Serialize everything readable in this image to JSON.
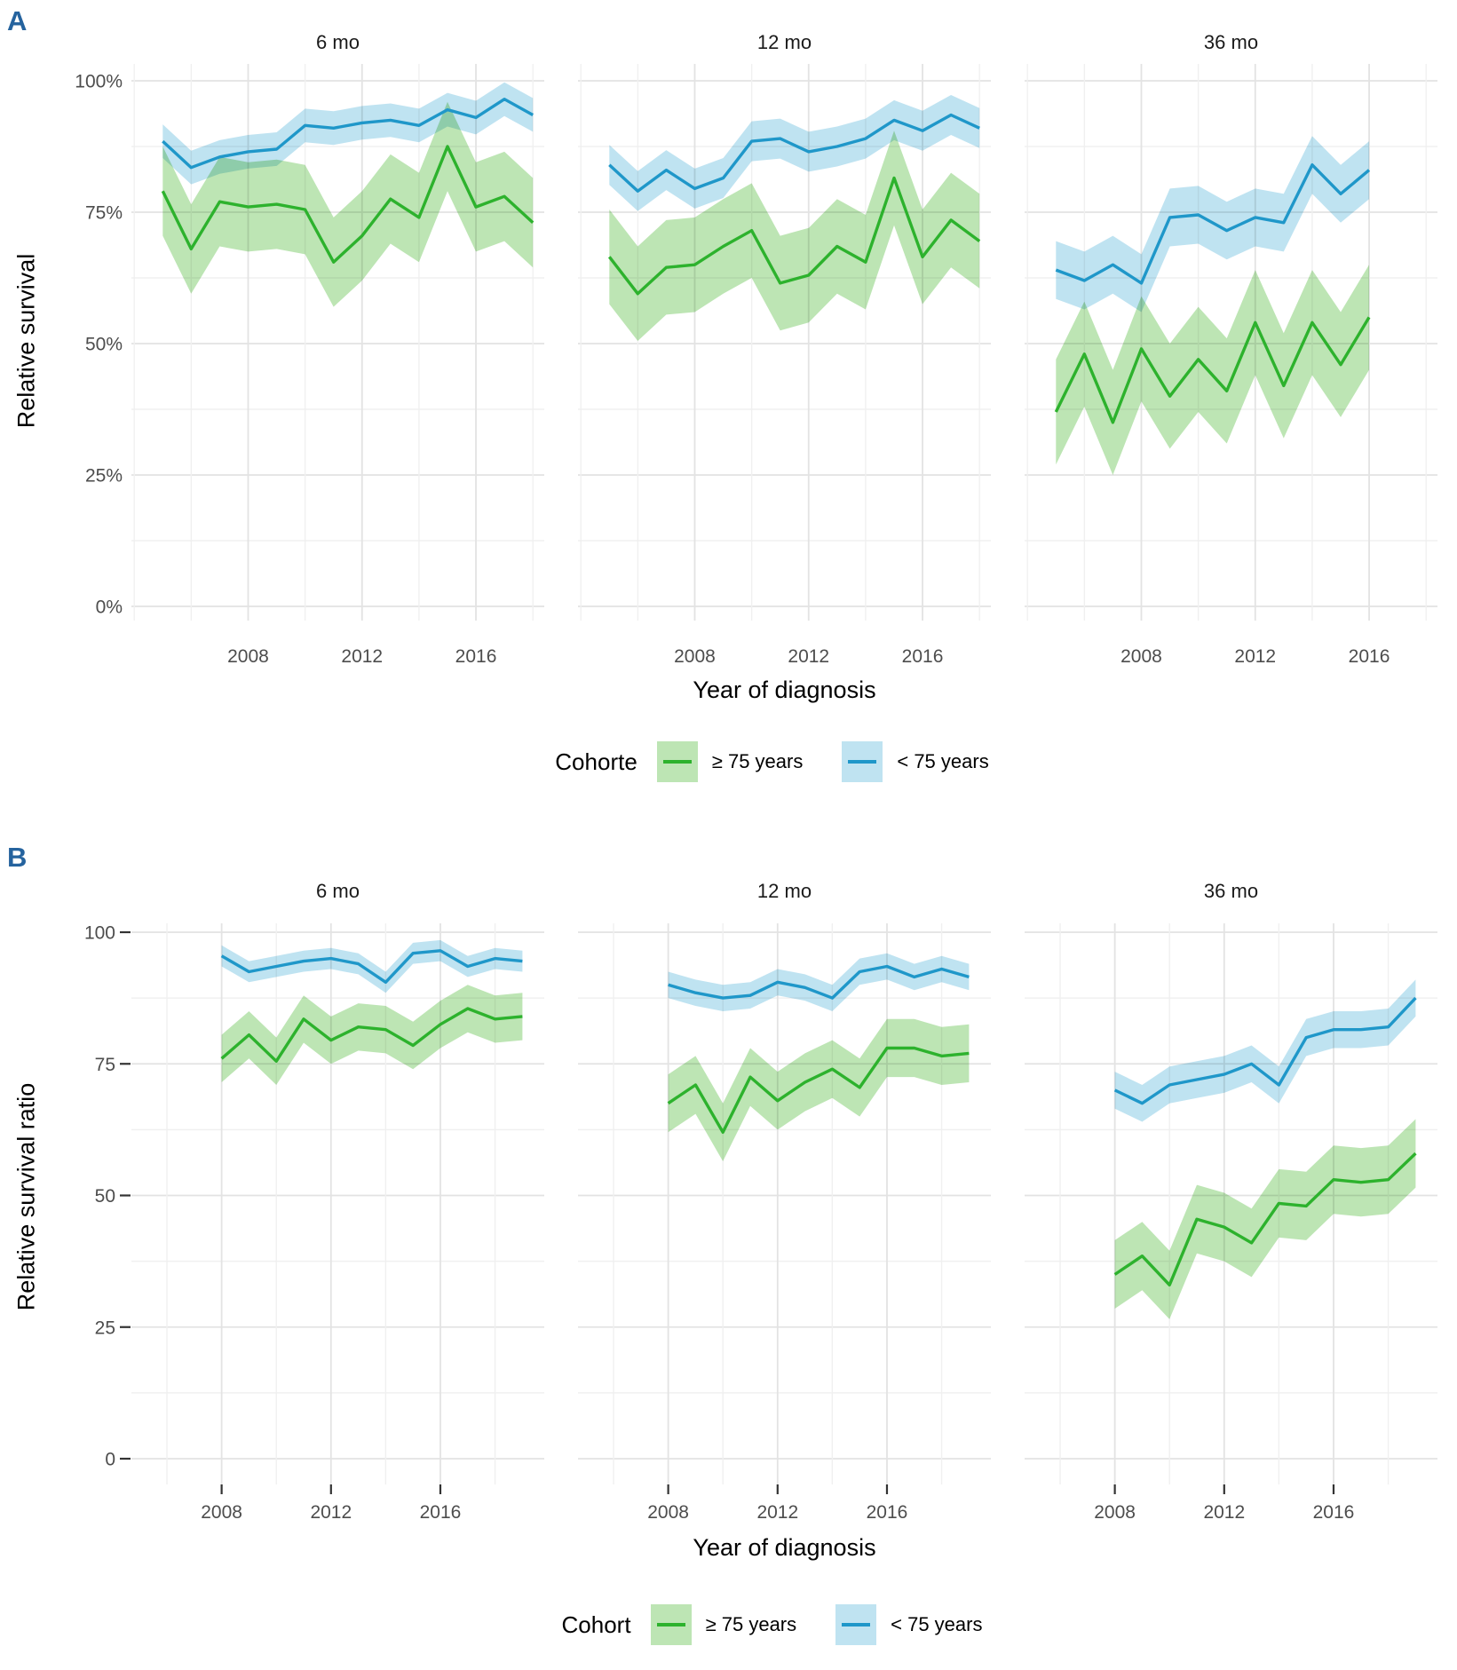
{
  "colors": {
    "ge75_line": "#2db22d",
    "ge75_band": "#bde5b4",
    "lt75_line": "#1f97c9",
    "lt75_band": "#bfe3f1",
    "panel_letter": "#25639e",
    "tick_text": "#4d4d4d",
    "grid_major": "#e3e3e3",
    "grid_minor": "#f0f0f0",
    "tick_mark": "#333333"
  },
  "chart_data": [
    {
      "type": "line",
      "label": "A",
      "y_title": "Relative survival",
      "x_title": "Year of diagnosis",
      "ylim": [
        0,
        100
      ],
      "y_ticks": [
        {
          "v": 100,
          "label": "100%"
        },
        {
          "v": 75,
          "label": "75%"
        },
        {
          "v": 50,
          "label": "50%"
        },
        {
          "v": 25,
          "label": "25%"
        },
        {
          "v": 0,
          "label": "0%"
        }
      ],
      "x_tick_years": [
        2008,
        2012,
        2016
      ],
      "legend": {
        "title": "Cohorte",
        "items": [
          {
            "key": "ge75",
            "label": "≥ 75 years"
          },
          {
            "key": "lt75",
            "label": "< 75 years"
          }
        ]
      },
      "facets": [
        {
          "title": "6 mo",
          "years": [
            2005,
            2006,
            2007,
            2008,
            2009,
            2010,
            2011,
            2012,
            2013,
            2014,
            2015,
            2016,
            2017,
            2018
          ],
          "series": [
            {
              "key": "ge75",
              "name": "≥ 75 years",
              "band": 8.5,
              "values": [
                79,
                68,
                77,
                76,
                76.5,
                75.5,
                65.5,
                70.5,
                77.5,
                74,
                87.5,
                76,
                78,
                73
              ]
            },
            {
              "key": "lt75",
              "name": "< 75 years",
              "band": 3.2,
              "values": [
                88.5,
                83.5,
                85.5,
                86.5,
                87,
                91.5,
                91,
                92,
                92.5,
                91.5,
                94.5,
                93,
                96.5,
                93.5
              ]
            }
          ]
        },
        {
          "title": "12 mo",
          "years": [
            2005,
            2006,
            2007,
            2008,
            2009,
            2010,
            2011,
            2012,
            2013,
            2014,
            2015,
            2016,
            2017,
            2018
          ],
          "series": [
            {
              "key": "ge75",
              "name": "≥ 75 years",
              "band": 9,
              "values": [
                66.5,
                59.5,
                64.5,
                65,
                68.5,
                71.5,
                61.5,
                63,
                68.5,
                65.5,
                81.5,
                66.5,
                73.5,
                69.5
              ]
            },
            {
              "key": "lt75",
              "name": "< 75 years",
              "band": 3.8,
              "values": [
                84,
                79,
                83,
                79.5,
                81.5,
                88.5,
                89,
                86.5,
                87.5,
                89,
                92.5,
                90.5,
                93.5,
                91
              ]
            }
          ]
        },
        {
          "title": "36 mo",
          "years": [
            2005,
            2006,
            2007,
            2008,
            2009,
            2010,
            2011,
            2012,
            2013,
            2014,
            2015,
            2016
          ],
          "series": [
            {
              "key": "ge75",
              "name": "≥ 75 years",
              "band": 10,
              "values": [
                37,
                48,
                35,
                49,
                40,
                47,
                41,
                54,
                42,
                54,
                46,
                55
              ]
            },
            {
              "key": "lt75",
              "name": "< 75 years",
              "band": 5.5,
              "values": [
                64,
                62,
                65,
                61.5,
                74,
                74.5,
                71.5,
                74,
                73,
                84,
                78.5,
                83
              ]
            }
          ]
        }
      ]
    },
    {
      "type": "line",
      "label": "B",
      "y_title": "Relative survival ratio",
      "x_title": "Year of diagnosis",
      "ylim": [
        0,
        100
      ],
      "y_ticks": [
        {
          "v": 100,
          "label": "100"
        },
        {
          "v": 75,
          "label": "75"
        },
        {
          "v": 50,
          "label": "50"
        },
        {
          "v": 25,
          "label": "25"
        },
        {
          "v": 0,
          "label": "0"
        }
      ],
      "x_tick_years": [
        2008,
        2012,
        2016
      ],
      "legend": {
        "title": "Cohort",
        "items": [
          {
            "key": "ge75",
            "label": "≥ 75 years"
          },
          {
            "key": "lt75",
            "label": "< 75 years"
          }
        ]
      },
      "facets": [
        {
          "title": "6 mo",
          "years": [
            2008,
            2009,
            2010,
            2011,
            2012,
            2013,
            2014,
            2015,
            2016,
            2017,
            2018,
            2019
          ],
          "series": [
            {
              "key": "ge75",
              "name": "≥ 75 years",
              "band": 4.5,
              "values": [
                76,
                80.5,
                75.5,
                83.5,
                79.5,
                82,
                81.5,
                78.5,
                82.5,
                85.5,
                83.5,
                84
              ]
            },
            {
              "key": "lt75",
              "name": "< 75 years",
              "band": 2,
              "values": [
                95.5,
                92.5,
                93.5,
                94.5,
                95,
                94,
                90.5,
                96,
                96.5,
                93.5,
                95,
                94.5
              ]
            }
          ]
        },
        {
          "title": "12 mo",
          "years": [
            2008,
            2009,
            2010,
            2011,
            2012,
            2013,
            2014,
            2015,
            2016,
            2017,
            2018,
            2019
          ],
          "series": [
            {
              "key": "ge75",
              "name": "≥ 75 years",
              "band": 5.5,
              "values": [
                67.5,
                71,
                62,
                72.5,
                68,
                71.5,
                74,
                70.5,
                78,
                78,
                76.5,
                77
              ]
            },
            {
              "key": "lt75",
              "name": "< 75 years",
              "band": 2.5,
              "values": [
                90,
                88.5,
                87.5,
                88,
                90.5,
                89.5,
                87.5,
                92.5,
                93.5,
                91.5,
                93,
                91.5
              ]
            }
          ]
        },
        {
          "title": "36 mo",
          "years": [
            2008,
            2009,
            2010,
            2011,
            2012,
            2013,
            2014,
            2015,
            2016,
            2017,
            2018,
            2019
          ],
          "series": [
            {
              "key": "ge75",
              "name": "≥ 75 years",
              "band": 6.5,
              "values": [
                35,
                38.5,
                33,
                45.5,
                44,
                41,
                48.5,
                48,
                53,
                52.5,
                53,
                58
              ]
            },
            {
              "key": "lt75",
              "name": "< 75 years",
              "band": 3.5,
              "values": [
                70,
                67.5,
                71,
                72,
                73,
                75,
                71,
                80,
                81.5,
                81.5,
                82,
                87.5
              ]
            }
          ]
        }
      ]
    }
  ]
}
